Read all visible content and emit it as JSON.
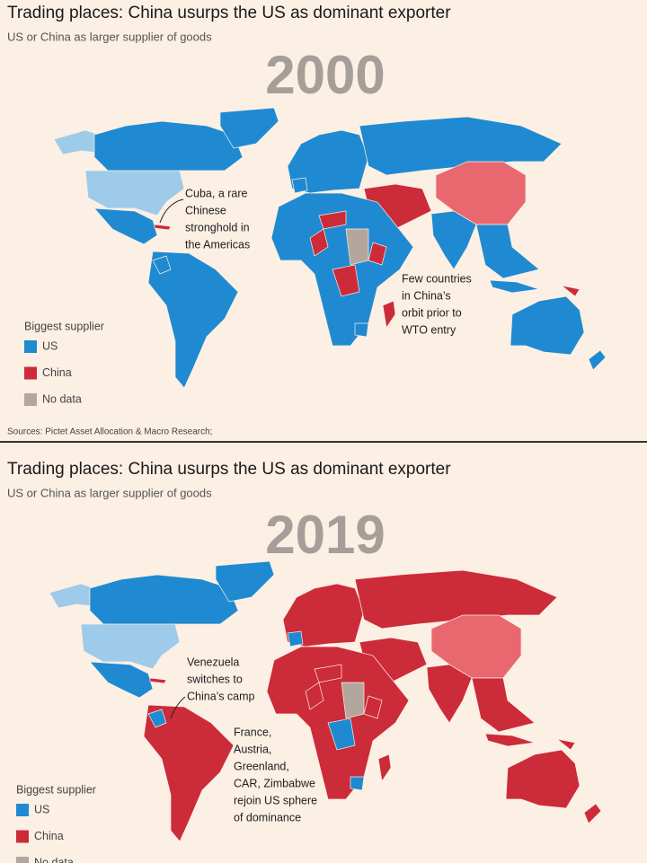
{
  "panels": [
    {
      "title": "Trading places: China usurps the US as dominant exporter",
      "subtitle": "US or China as larger supplier of goods",
      "year": "2000",
      "annotations": [
        {
          "lines": [
            "Cuba, a rare",
            "Chinese",
            "stronghold in",
            "the Americas"
          ]
        },
        {
          "lines": [
            "Few countries",
            "in China’s",
            "orbit prior to",
            "WTO entry"
          ]
        }
      ],
      "legend": {
        "title": "Biggest supplier",
        "items": [
          {
            "label": "US",
            "color": "#1f8ad1"
          },
          {
            "label": "China",
            "color": "#cc2b3a"
          },
          {
            "label": "No data",
            "color": "#b3a69d"
          }
        ]
      },
      "source": "Sources: Pictet Asset Allocation & Macro Research;"
    },
    {
      "title": "Trading places: China usurps the US as dominant exporter",
      "subtitle": "US or China as larger supplier of goods",
      "year": "2019",
      "annotations": [
        {
          "lines": [
            "Venezuela",
            "switches to",
            "China’s camp"
          ]
        },
        {
          "lines": [
            "France,",
            "Austria,",
            "Greenland,",
            "CAR, Zimbabwe",
            "rejoin US sphere",
            "of dominance"
          ]
        }
      ],
      "legend": {
        "title": "Biggest supplier",
        "items": [
          {
            "label": "US",
            "color": "#1f8ad1"
          },
          {
            "label": "China",
            "color": "#cc2b3a"
          },
          {
            "label": "No data",
            "color": "#b3a69d"
          }
        ]
      }
    }
  ]
}
